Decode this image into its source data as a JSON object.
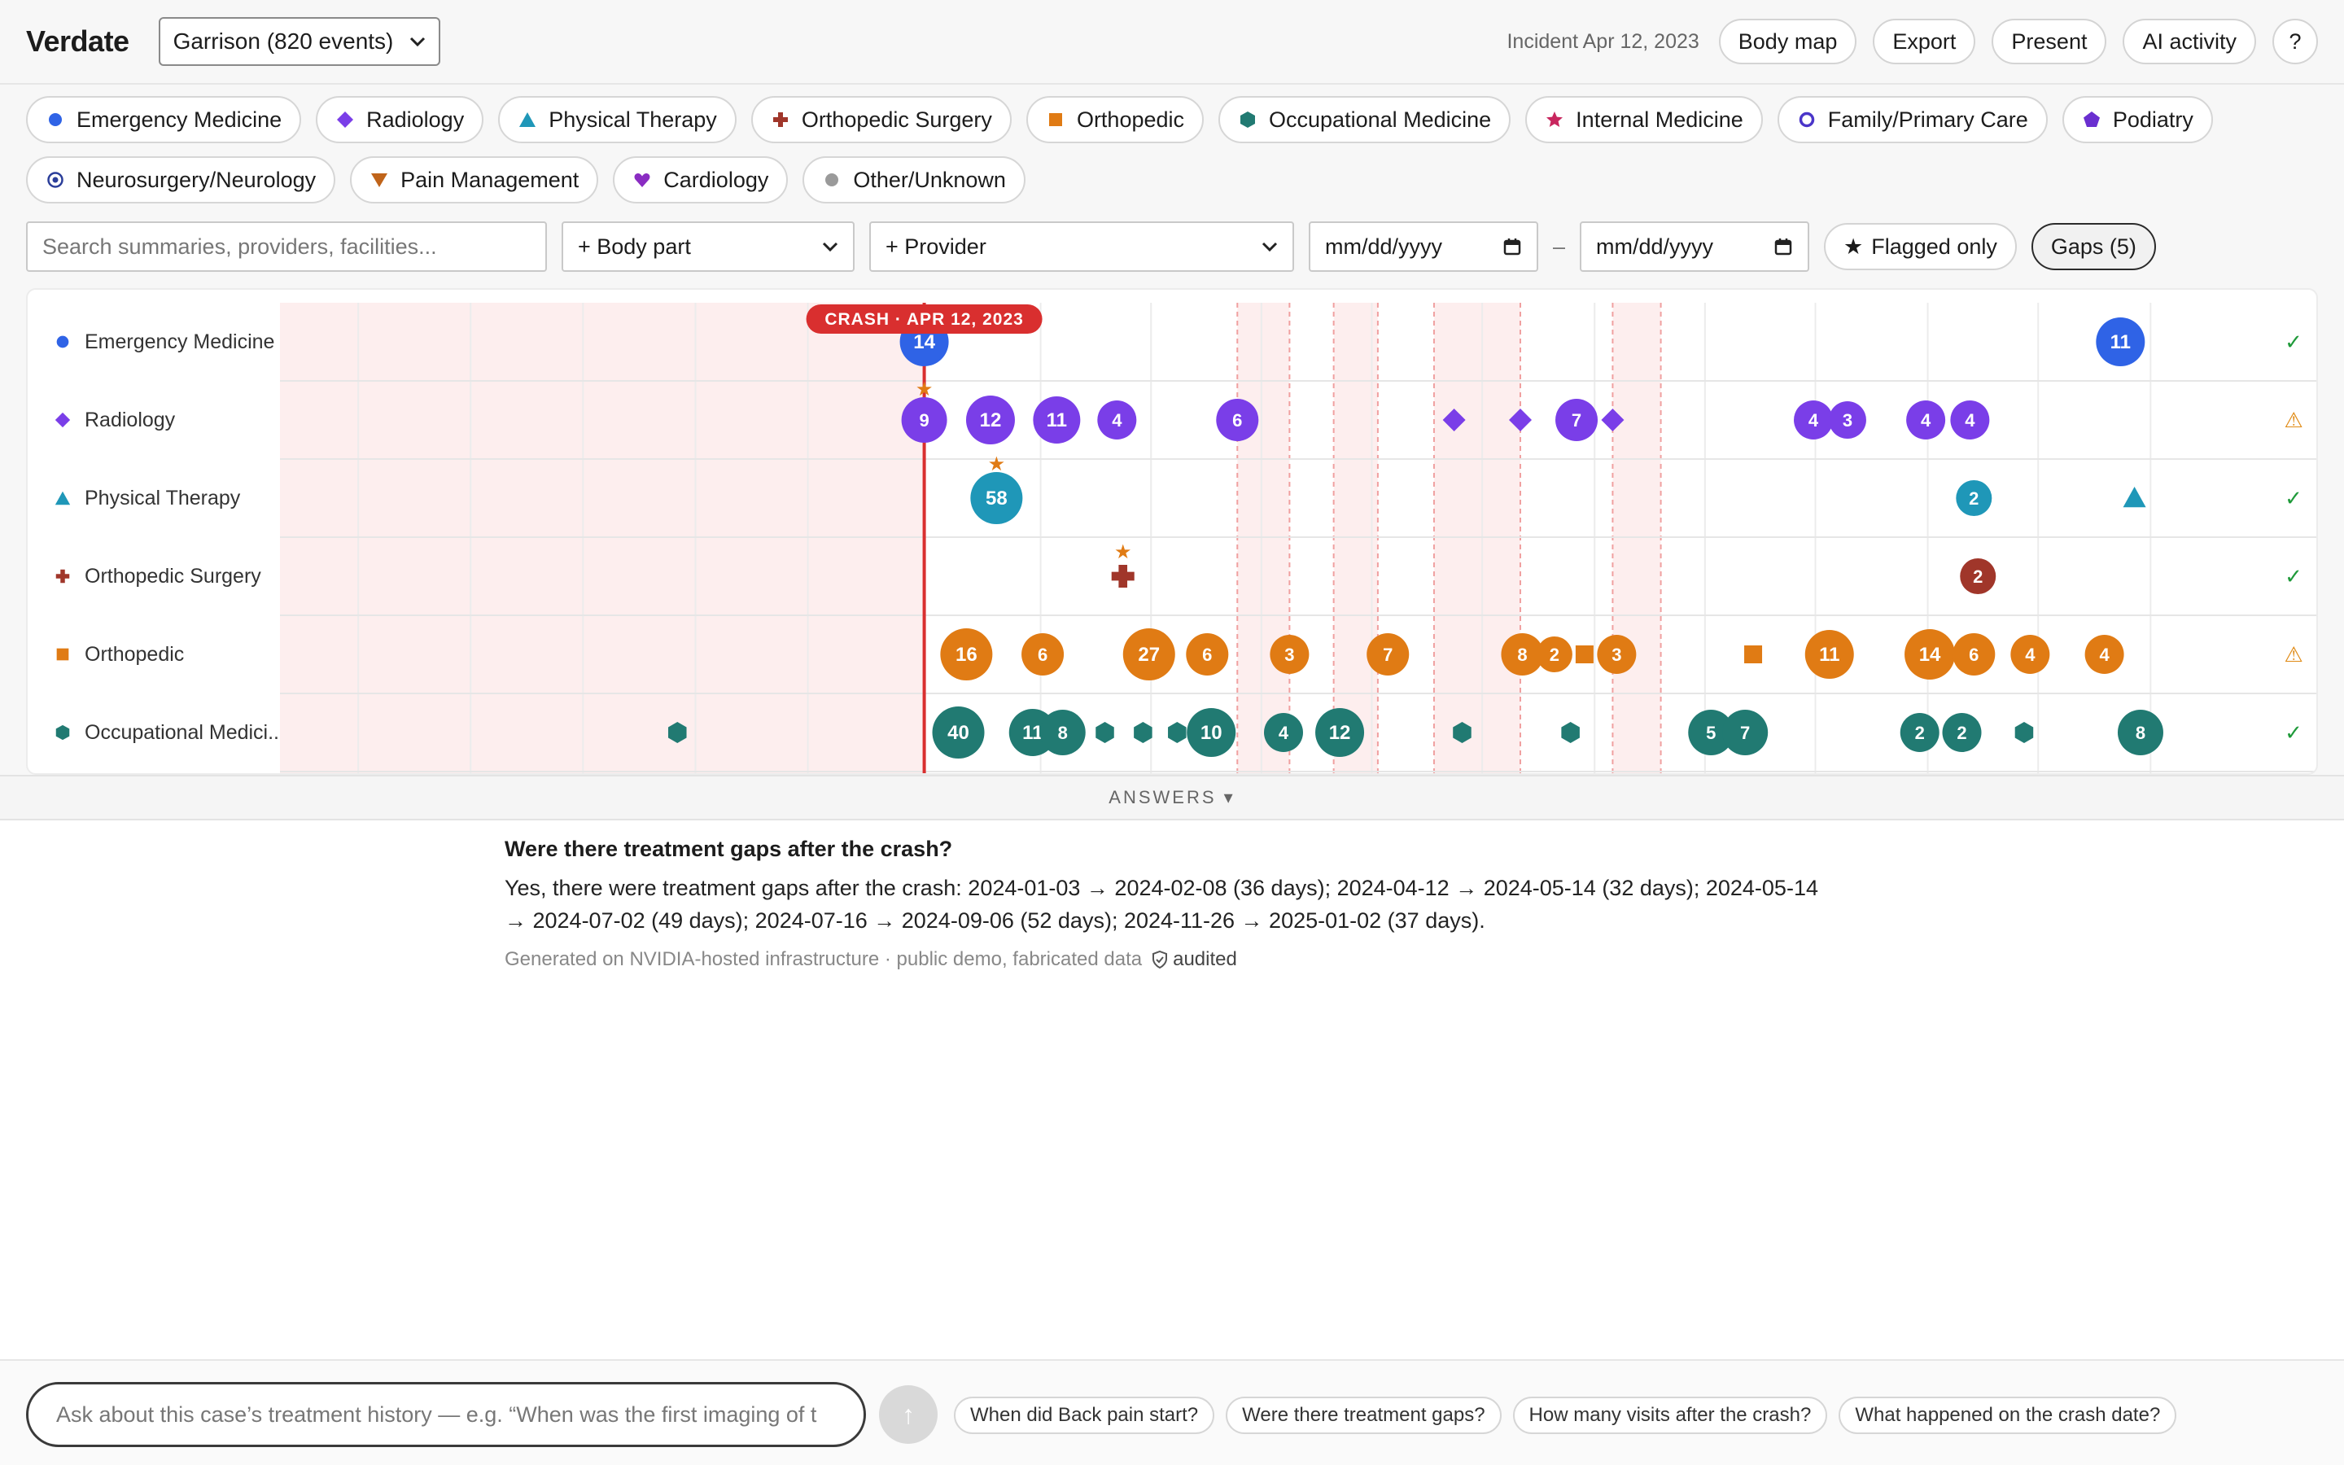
{
  "app": {
    "name": "Verdate",
    "case_select": "Garrison (820 events)"
  },
  "header": {
    "incident": "Incident Apr 12, 2023",
    "buttons": [
      "Body map",
      "Export",
      "Present",
      "AI activity",
      "?"
    ]
  },
  "specialties": [
    {
      "label": "Emergency Medicine",
      "icon": "circle-icon",
      "color": "#2f63e6"
    },
    {
      "label": "Radiology",
      "icon": "diamond-icon",
      "color": "#7a3ee8"
    },
    {
      "label": "Physical Therapy",
      "icon": "triangle-icon",
      "color": "#1f97b8"
    },
    {
      "label": "Orthopedic Surgery",
      "icon": "cross-icon",
      "color": "#a0362a"
    },
    {
      "label": "Orthopedic",
      "icon": "square-icon",
      "color": "#e07b14"
    },
    {
      "label": "Occupational Medicine",
      "icon": "hexagon-icon",
      "color": "#217a72"
    },
    {
      "label": "Internal Medicine",
      "icon": "star-icon",
      "color": "#c8265e"
    },
    {
      "label": "Family/Primary Care",
      "icon": "ring-icon",
      "color": "#4a35c9"
    },
    {
      "label": "Podiatry",
      "icon": "pentagon-icon",
      "color": "#6a2fd0"
    },
    {
      "label": "Neurosurgery/Neurology",
      "icon": "target-icon",
      "color": "#2b3e9a"
    },
    {
      "label": "Pain Management",
      "icon": "down-triangle-icon",
      "color": "#c0641a"
    },
    {
      "label": "Cardiology",
      "icon": "heart-icon",
      "color": "#8a2cc2"
    },
    {
      "label": "Other/Unknown",
      "icon": "gray-circle-icon",
      "color": "#9a9a9a"
    }
  ],
  "controls": {
    "search_placeholder": "Search summaries, providers, facilities...",
    "body_part": "+ Body part",
    "provider": "+ Provider",
    "date_from": "mm/dd/yyyy",
    "date_to": "mm/dd/yyyy",
    "date_sep": "–",
    "flagged": "Flagged only",
    "gaps": "Gaps (5)"
  },
  "timeline": {
    "crash_label": "CRASH · APR 12, 2023",
    "lanes": [
      {
        "label": "Emergency Medicine",
        "status": "ok"
      },
      {
        "label": "Radiology",
        "status": "warn"
      },
      {
        "label": "Physical Therapy",
        "status": "ok"
      },
      {
        "label": "Orthopedic Surgery",
        "status": "ok"
      },
      {
        "label": "Orthopedic",
        "status": "warn"
      },
      {
        "label": "Occupational Medici...",
        "status": "ok"
      }
    ],
    "events": [
      {
        "lane": 0,
        "col": 32.1,
        "count": "14",
        "shape": "circle",
        "r": 30
      },
      {
        "lane": 0,
        "col": 91.7,
        "count": "11",
        "shape": "circle",
        "r": 30
      },
      {
        "lane": 1,
        "col": 32.1,
        "count": "9",
        "shape": "circle",
        "r": 28,
        "flag": true
      },
      {
        "lane": 1,
        "col": 35.4,
        "count": "12",
        "shape": "circle",
        "r": 30
      },
      {
        "lane": 1,
        "col": 38.7,
        "count": "11",
        "shape": "circle",
        "r": 29
      },
      {
        "lane": 1,
        "col": 41.7,
        "count": "4",
        "shape": "circle",
        "r": 24
      },
      {
        "lane": 1,
        "col": 47.7,
        "count": "6",
        "shape": "circle",
        "r": 26
      },
      {
        "lane": 1,
        "col": 58.5,
        "count": "",
        "shape": "diamond",
        "r": 14
      },
      {
        "lane": 1,
        "col": 61.8,
        "count": "",
        "shape": "diamond",
        "r": 14
      },
      {
        "lane": 1,
        "col": 64.6,
        "count": "7",
        "shape": "circle",
        "r": 26
      },
      {
        "lane": 1,
        "col": 66.4,
        "count": "",
        "shape": "diamond",
        "r": 14
      },
      {
        "lane": 1,
        "col": 76.4,
        "count": "4",
        "shape": "circle",
        "r": 24
      },
      {
        "lane": 1,
        "col": 78.1,
        "count": "3",
        "shape": "circle",
        "r": 23
      },
      {
        "lane": 1,
        "col": 82.0,
        "count": "4",
        "shape": "circle",
        "r": 24
      },
      {
        "lane": 1,
        "col": 84.2,
        "count": "4",
        "shape": "circle",
        "r": 24
      },
      {
        "lane": 2,
        "col": 35.7,
        "count": "58",
        "shape": "circle",
        "r": 32,
        "flag": true
      },
      {
        "lane": 2,
        "col": 84.4,
        "count": "2",
        "shape": "circle",
        "r": 22
      },
      {
        "lane": 2,
        "col": 92.4,
        "count": "",
        "shape": "triangle",
        "r": 14
      },
      {
        "lane": 3,
        "col": 42.0,
        "count": "",
        "shape": "cross",
        "r": 14,
        "flag": true
      },
      {
        "lane": 3,
        "col": 84.6,
        "count": "2",
        "shape": "circle",
        "r": 22
      },
      {
        "lane": 4,
        "col": 34.2,
        "count": "16",
        "shape": "circle",
        "r": 32
      },
      {
        "lane": 4,
        "col": 38.0,
        "count": "6",
        "shape": "circle",
        "r": 26
      },
      {
        "lane": 4,
        "col": 43.3,
        "count": "27",
        "shape": "circle",
        "r": 32
      },
      {
        "lane": 4,
        "col": 46.2,
        "count": "6",
        "shape": "circle",
        "r": 26
      },
      {
        "lane": 4,
        "col": 50.3,
        "count": "3",
        "shape": "circle",
        "r": 24
      },
      {
        "lane": 4,
        "col": 55.2,
        "count": "7",
        "shape": "circle",
        "r": 26
      },
      {
        "lane": 4,
        "col": 61.9,
        "count": "8",
        "shape": "circle",
        "r": 26
      },
      {
        "lane": 4,
        "col": 63.5,
        "count": "2",
        "shape": "circle",
        "r": 22
      },
      {
        "lane": 4,
        "col": 65.0,
        "count": "",
        "shape": "square",
        "r": 11
      },
      {
        "lane": 4,
        "col": 66.6,
        "count": "3",
        "shape": "circle",
        "r": 24
      },
      {
        "lane": 4,
        "col": 73.4,
        "count": "",
        "shape": "square",
        "r": 11
      },
      {
        "lane": 4,
        "col": 77.2,
        "count": "11",
        "shape": "circle",
        "r": 30
      },
      {
        "lane": 4,
        "col": 82.2,
        "count": "14",
        "shape": "circle",
        "r": 31
      },
      {
        "lane": 4,
        "col": 84.4,
        "count": "6",
        "shape": "circle",
        "r": 26
      },
      {
        "lane": 4,
        "col": 87.2,
        "count": "4",
        "shape": "circle",
        "r": 24
      },
      {
        "lane": 4,
        "col": 90.9,
        "count": "4",
        "shape": "circle",
        "r": 24
      },
      {
        "lane": 5,
        "col": 19.8,
        "count": "",
        "shape": "hexagon",
        "r": 13
      },
      {
        "lane": 5,
        "col": 33.8,
        "count": "40",
        "shape": "circle",
        "r": 32
      },
      {
        "lane": 5,
        "col": 37.5,
        "count": "11",
        "shape": "circle",
        "r": 29
      },
      {
        "lane": 5,
        "col": 39.0,
        "count": "8",
        "shape": "circle",
        "r": 28
      },
      {
        "lane": 5,
        "col": 41.1,
        "count": "",
        "shape": "hexagon",
        "r": 13
      },
      {
        "lane": 5,
        "col": 43.0,
        "count": "",
        "shape": "hexagon",
        "r": 13
      },
      {
        "lane": 5,
        "col": 44.7,
        "count": "",
        "shape": "hexagon",
        "r": 13
      },
      {
        "lane": 5,
        "col": 46.4,
        "count": "10",
        "shape": "circle",
        "r": 30
      },
      {
        "lane": 5,
        "col": 50.0,
        "count": "4",
        "shape": "circle",
        "r": 24
      },
      {
        "lane": 5,
        "col": 52.8,
        "count": "12",
        "shape": "circle",
        "r": 30
      },
      {
        "lane": 5,
        "col": 58.9,
        "count": "",
        "shape": "hexagon",
        "r": 13
      },
      {
        "lane": 5,
        "col": 64.3,
        "count": "",
        "shape": "hexagon",
        "r": 13
      },
      {
        "lane": 5,
        "col": 71.3,
        "count": "5",
        "shape": "circle",
        "r": 28
      },
      {
        "lane": 5,
        "col": 73.0,
        "count": "7",
        "shape": "circle",
        "r": 28
      },
      {
        "lane": 5,
        "col": 81.7,
        "count": "2",
        "shape": "circle",
        "r": 24
      },
      {
        "lane": 5,
        "col": 83.8,
        "count": "2",
        "shape": "circle",
        "r": 24
      },
      {
        "lane": 5,
        "col": 86.9,
        "count": "",
        "shape": "hexagon",
        "r": 13
      },
      {
        "lane": 5,
        "col": 92.7,
        "count": "8",
        "shape": "circle",
        "r": 28
      }
    ]
  },
  "answers": {
    "toggle_label": "ANSWERS ▾",
    "question": "Were there treatment gaps after the crash?",
    "answer": "Yes, there were treatment gaps after the crash: 2024-01-03 → 2024-02-08 (36 days); 2024-04-12 → 2024-05-14 (32 days); 2024-05-14 → 2024-07-02 (49 days); 2024-07-16 → 2024-09-06 (52 days); 2024-11-26 → 2025-01-02 (37 days).",
    "meta": "Generated on NVIDIA-hosted infrastructure · public demo, fabricated data",
    "audited": "audited"
  },
  "ask": {
    "placeholder": "Ask about this case’s treatment history — e.g. “When was the first imaging of t",
    "send": "↑",
    "suggestions": [
      "When did Back pain start?",
      "Were there treatment gaps?",
      "How many visits after the crash?",
      "What happened on the crash date?"
    ]
  }
}
